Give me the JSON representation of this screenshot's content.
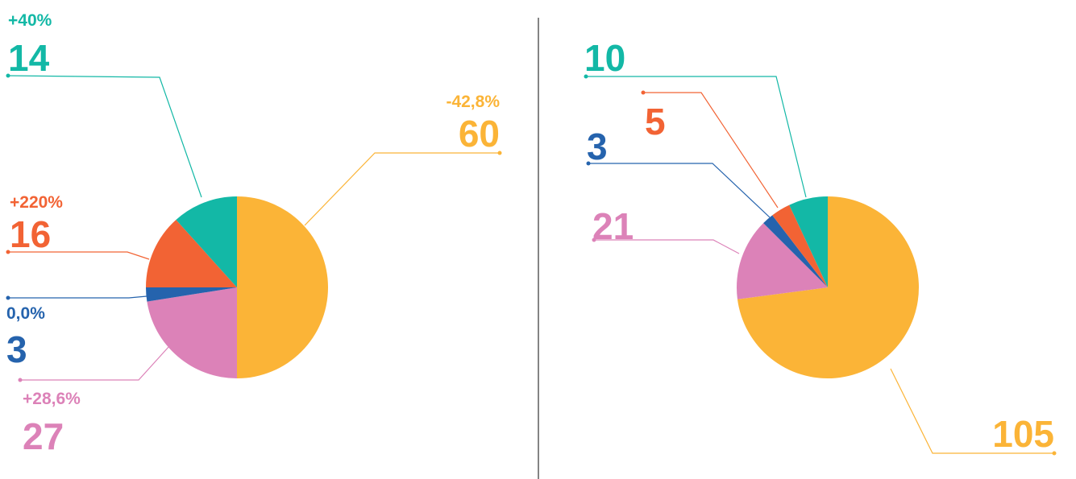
{
  "chart_data": [
    {
      "type": "pie",
      "values": [
        60,
        27,
        3,
        16,
        14
      ],
      "colors": [
        "#fbb437",
        "#dc82b8",
        "#2563ad",
        "#f26334",
        "#13b8a6"
      ],
      "annotations": [
        "-42,8%",
        "+28,6%",
        "0,0%",
        "+220%",
        "+40%"
      ]
    },
    {
      "type": "pie",
      "values": [
        105,
        21,
        3,
        5,
        10
      ],
      "colors": [
        "#fbb437",
        "#dc82b8",
        "#2563ad",
        "#f26334",
        "#13b8a6"
      ]
    }
  ]
}
